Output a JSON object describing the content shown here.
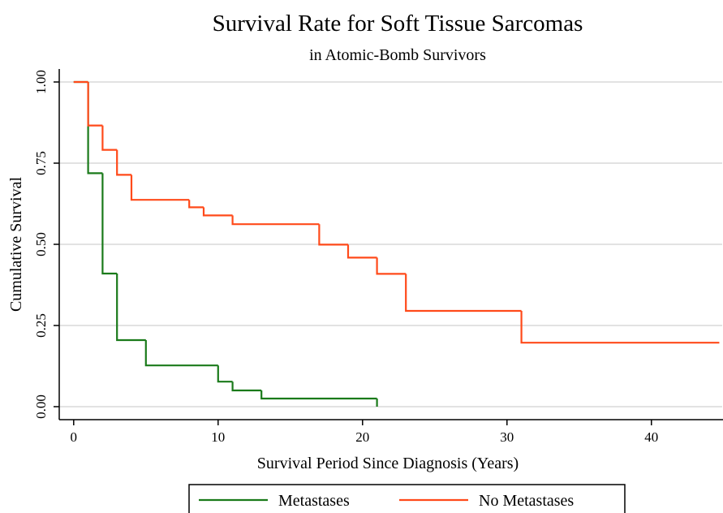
{
  "chart_data": {
    "type": "step",
    "title": "Survival Rate for Soft Tissue Sarcomas",
    "subtitle": "in Atomic-Bomb Survivors",
    "x_label": "Survival Period Since Diagnosis (Years)",
    "y_label": "Cumulative Survival",
    "xlim": [
      -1,
      44.9
    ],
    "ylim": [
      -0.04,
      1.04
    ],
    "xticks": [
      0,
      10,
      20,
      30,
      40
    ],
    "yticks": [
      {
        "value": 0,
        "label": "0.00"
      },
      0.25,
      {
        "value": 0.5,
        "label": "0.50"
      },
      0.75,
      {
        "value": 1,
        "label": "1.00"
      }
    ],
    "grid": true,
    "legend": "bottom",
    "series": [
      {
        "name": "Metastases",
        "color": "#1a7a1a",
        "x": [
          0,
          1,
          2,
          3,
          5,
          10,
          11,
          13,
          21
        ],
        "values": [
          1,
          0.719,
          0.41,
          0.205,
          0.127,
          0.077,
          0.05,
          0.025,
          0
        ]
      },
      {
        "name": "No Metastases",
        "color": "#ff4a1a",
        "x": [
          0,
          1,
          2,
          3,
          4,
          8,
          9,
          11,
          17,
          19,
          21,
          23,
          31,
          44.7
        ],
        "values": [
          1,
          0.866,
          0.791,
          0.714,
          0.637,
          0.614,
          0.589,
          0.562,
          0.499,
          0.459,
          0.409,
          0.295,
          0.197,
          0.197
        ]
      }
    ]
  }
}
